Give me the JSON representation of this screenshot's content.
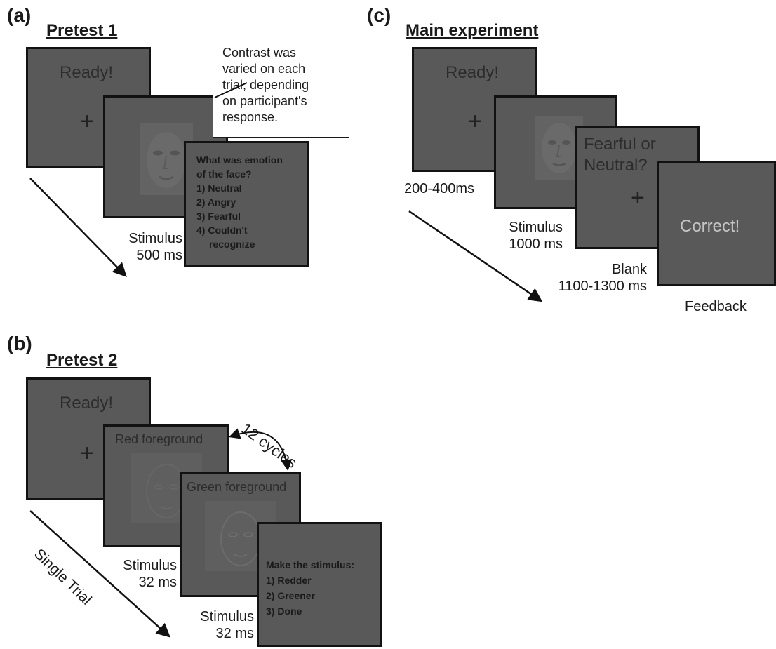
{
  "panel_a": {
    "letter": "(a)",
    "title": "Pretest 1",
    "ready": "Ready!",
    "fixation": "+",
    "callout_lines": [
      "Contrast was",
      "varied on each",
      "trial, depending",
      "on participant's",
      "response."
    ],
    "question_lines": [
      "What was emotion",
      "of the face?",
      "1) Neutral",
      "2) Angry",
      "3) Fearful",
      "4) Couldn't",
      "    recognize"
    ],
    "stimulus_label": [
      "Stimulus",
      "500 ms"
    ]
  },
  "panel_b": {
    "letter": "(b)",
    "title": "Pretest 2",
    "ready": "Ready!",
    "fixation": "+",
    "red_foreground": "Red foreground",
    "green_foreground": "Green foreground",
    "cycles": "12 cycles",
    "question_lines": [
      "Make the stimulus:",
      "1) Redder",
      "2) Greener",
      "3) Done"
    ],
    "stimulus1_label": [
      "Stimulus",
      "32 ms"
    ],
    "stimulus2_label": [
      "Stimulus",
      "32 ms"
    ],
    "single_trial": "Single Trial"
  },
  "panel_c": {
    "letter": "(c)",
    "title": "Main experiment",
    "ready": "Ready!",
    "fixation": "+",
    "blank_text_lines": [
      "Fearful or",
      "Neutral?"
    ],
    "blank_fixation": "+",
    "correct": "Correct!",
    "ready_label": "200-400ms",
    "stimulus_label": [
      "Stimulus",
      "1000 ms"
    ],
    "blank_label": [
      "Blank",
      "1100-1300 ms"
    ],
    "feedback_label": "Feedback"
  },
  "colors": {
    "screen_fill": "#595959",
    "screen_border": "#121212",
    "correct_text": "#c4c4c4"
  }
}
